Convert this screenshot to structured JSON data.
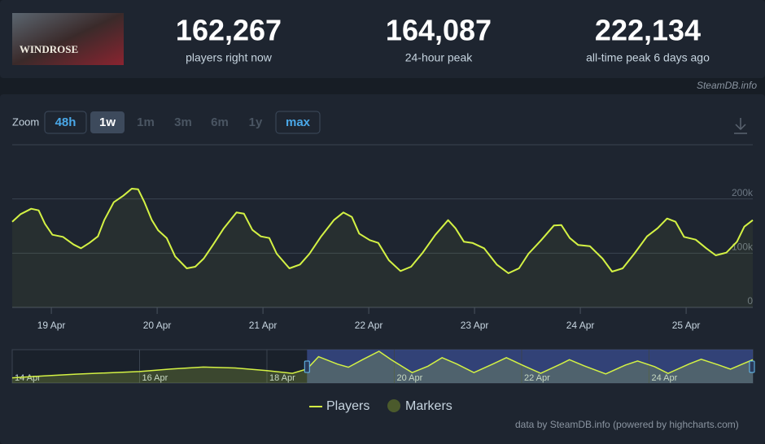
{
  "header": {
    "game_logo_text": "WINDROSE",
    "stats": [
      {
        "value": "162,267",
        "label": "players right now"
      },
      {
        "value": "164,087",
        "label": "24-hour peak"
      },
      {
        "value": "222,134",
        "label": "all-time peak 6 days ago"
      }
    ]
  },
  "source": "SteamDB.info",
  "zoom": {
    "label": "Zoom",
    "options": [
      "48h",
      "1w",
      "1m",
      "3m",
      "6m",
      "1y",
      "max"
    ]
  },
  "chart_data": {
    "type": "line",
    "x": [
      18.63,
      18.71,
      18.81,
      18.88,
      18.94,
      19.01,
      19.11,
      19.21,
      19.28,
      19.36,
      19.44,
      19.5,
      19.59,
      19.68,
      19.76,
      19.82,
      19.88,
      19.95,
      20.01,
      20.09,
      20.17,
      20.28,
      20.36,
      20.44,
      20.53,
      20.63,
      20.75,
      20.82,
      20.9,
      20.98,
      21.06,
      21.13,
      21.25,
      21.35,
      21.44,
      21.55,
      21.67,
      21.76,
      21.84,
      21.91,
      22.01,
      22.09,
      22.19,
      22.3,
      22.4,
      22.51,
      22.63,
      22.75,
      22.82,
      22.9,
      22.98,
      23.09,
      23.21,
      23.32,
      23.42,
      23.51,
      23.63,
      23.75,
      23.82,
      23.9,
      23.98,
      24.09,
      24.21,
      24.3,
      24.4,
      24.51,
      24.63,
      24.73,
      24.82,
      24.9,
      24.98,
      25.09,
      25.19,
      25.28,
      25.38,
      25.48,
      25.55,
      25.63
    ],
    "series": [
      {
        "name": "Players",
        "color": "#d4f244",
        "values": [
          158000,
          172000,
          182000,
          179000,
          154000,
          134000,
          130000,
          116000,
          109000,
          119000,
          131000,
          161000,
          194000,
          206000,
          219000,
          218000,
          194000,
          161000,
          142000,
          128000,
          94000,
          72000,
          75000,
          90000,
          116000,
          146000,
          175000,
          173000,
          143000,
          131000,
          128000,
          99000,
          72000,
          79000,
          99000,
          131000,
          161000,
          175000,
          167000,
          136000,
          124000,
          119000,
          87000,
          67000,
          75000,
          101000,
          134000,
          161000,
          146000,
          121000,
          119000,
          109000,
          79000,
          63000,
          72000,
          99000,
          124000,
          151000,
          152000,
          128000,
          115000,
          113000,
          90000,
          66000,
          72000,
          99000,
          131000,
          146000,
          164000,
          158000,
          130000,
          125000,
          109000,
          96000,
          101000,
          121000,
          149000,
          161000
        ]
      }
    ],
    "markers": {
      "name": "Markers",
      "color": "#4b5a2c"
    },
    "xlim": [
      18.63,
      25.63
    ],
    "xticks": [
      {
        "value": 19,
        "label": "19 Apr"
      },
      {
        "value": 20,
        "label": "20 Apr"
      },
      {
        "value": 21,
        "label": "21 Apr"
      },
      {
        "value": 22,
        "label": "22 Apr"
      },
      {
        "value": 23,
        "label": "23 Apr"
      },
      {
        "value": 24,
        "label": "24 Apr"
      },
      {
        "value": 25,
        "label": "25 Apr"
      }
    ],
    "ylim": [
      0,
      300000
    ],
    "yticks": [
      0,
      {
        "value": 100000,
        "label": "100k"
      },
      {
        "value": 200000,
        "label": "200k"
      }
    ],
    "grid": true
  },
  "navigator": {
    "x": [
      14.0,
      14.5,
      15.0,
      16.0,
      16.5,
      17.0,
      17.5,
      18.0,
      18.4,
      18.63,
      18.81,
      19.11,
      19.28,
      19.5,
      19.76,
      19.95,
      20.28,
      20.53,
      20.75,
      20.98,
      21.25,
      21.55,
      21.76,
      22.01,
      22.3,
      22.63,
      22.75,
      22.98,
      23.32,
      23.63,
      23.82,
      24.09,
      24.3,
      24.63,
      24.82,
      25.09,
      25.28,
      25.63
    ],
    "values": [
      36000,
      49000,
      61000,
      79000,
      97000,
      110000,
      104000,
      85000,
      67000,
      97000,
      182000,
      130000,
      109000,
      161000,
      219000,
      161000,
      72000,
      116000,
      175000,
      131000,
      72000,
      131000,
      175000,
      124000,
      67000,
      134000,
      161000,
      119000,
      63000,
      124000,
      152000,
      113000,
      66000,
      131000,
      164000,
      125000,
      96000,
      161000
    ],
    "xlim": [
      14.0,
      25.63
    ],
    "ylim": [
      0,
      230000
    ],
    "xticks": [
      {
        "value": 14,
        "label": "14 Apr"
      },
      {
        "value": 16,
        "label": "16 Apr"
      },
      {
        "value": 18,
        "label": "18 Apr"
      },
      {
        "value": 20,
        "label": "20 Apr"
      },
      {
        "value": 22,
        "label": "22 Apr"
      },
      {
        "value": 24,
        "label": "24 Apr"
      }
    ]
  },
  "credits": "data by SteamDB.info (powered by highcharts.com)"
}
